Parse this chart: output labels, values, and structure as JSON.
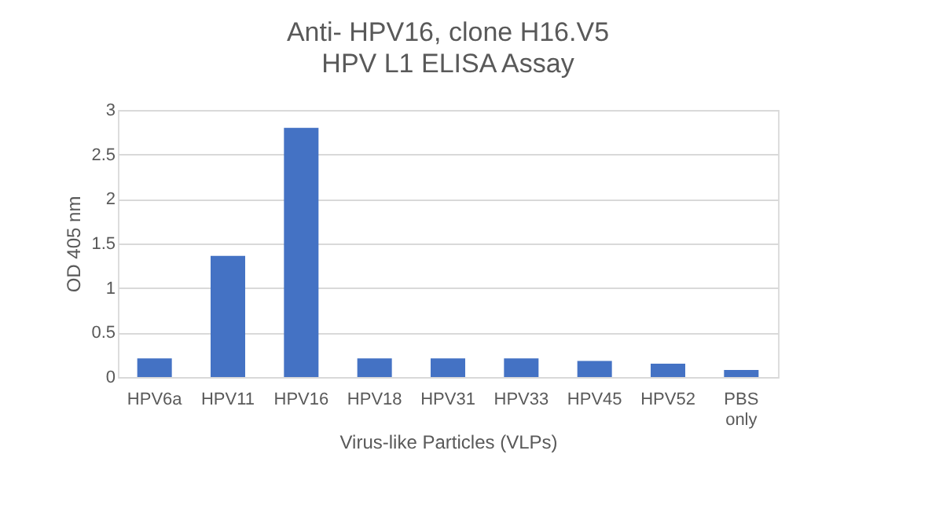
{
  "chart_data": {
    "type": "bar",
    "title": "Anti- HPV16, clone H16.V5",
    "subtitle": "HPV L1 ELISA Assay",
    "xlabel": "Virus-like Particles (VLPs)",
    "ylabel": "OD 405 nm",
    "categories": [
      "HPV6a",
      "HPV11",
      "HPV16",
      "HPV18",
      "HPV31",
      "HPV33",
      "HPV45",
      "HPV52",
      "PBS only"
    ],
    "values": [
      0.21,
      1.36,
      2.8,
      0.21,
      0.21,
      0.21,
      0.18,
      0.15,
      0.08
    ],
    "color": "#4472c4",
    "ylim": [
      0,
      3
    ],
    "yticks": [
      0,
      0.5,
      1,
      1.5,
      2,
      2.5,
      3
    ],
    "grid": "y"
  }
}
